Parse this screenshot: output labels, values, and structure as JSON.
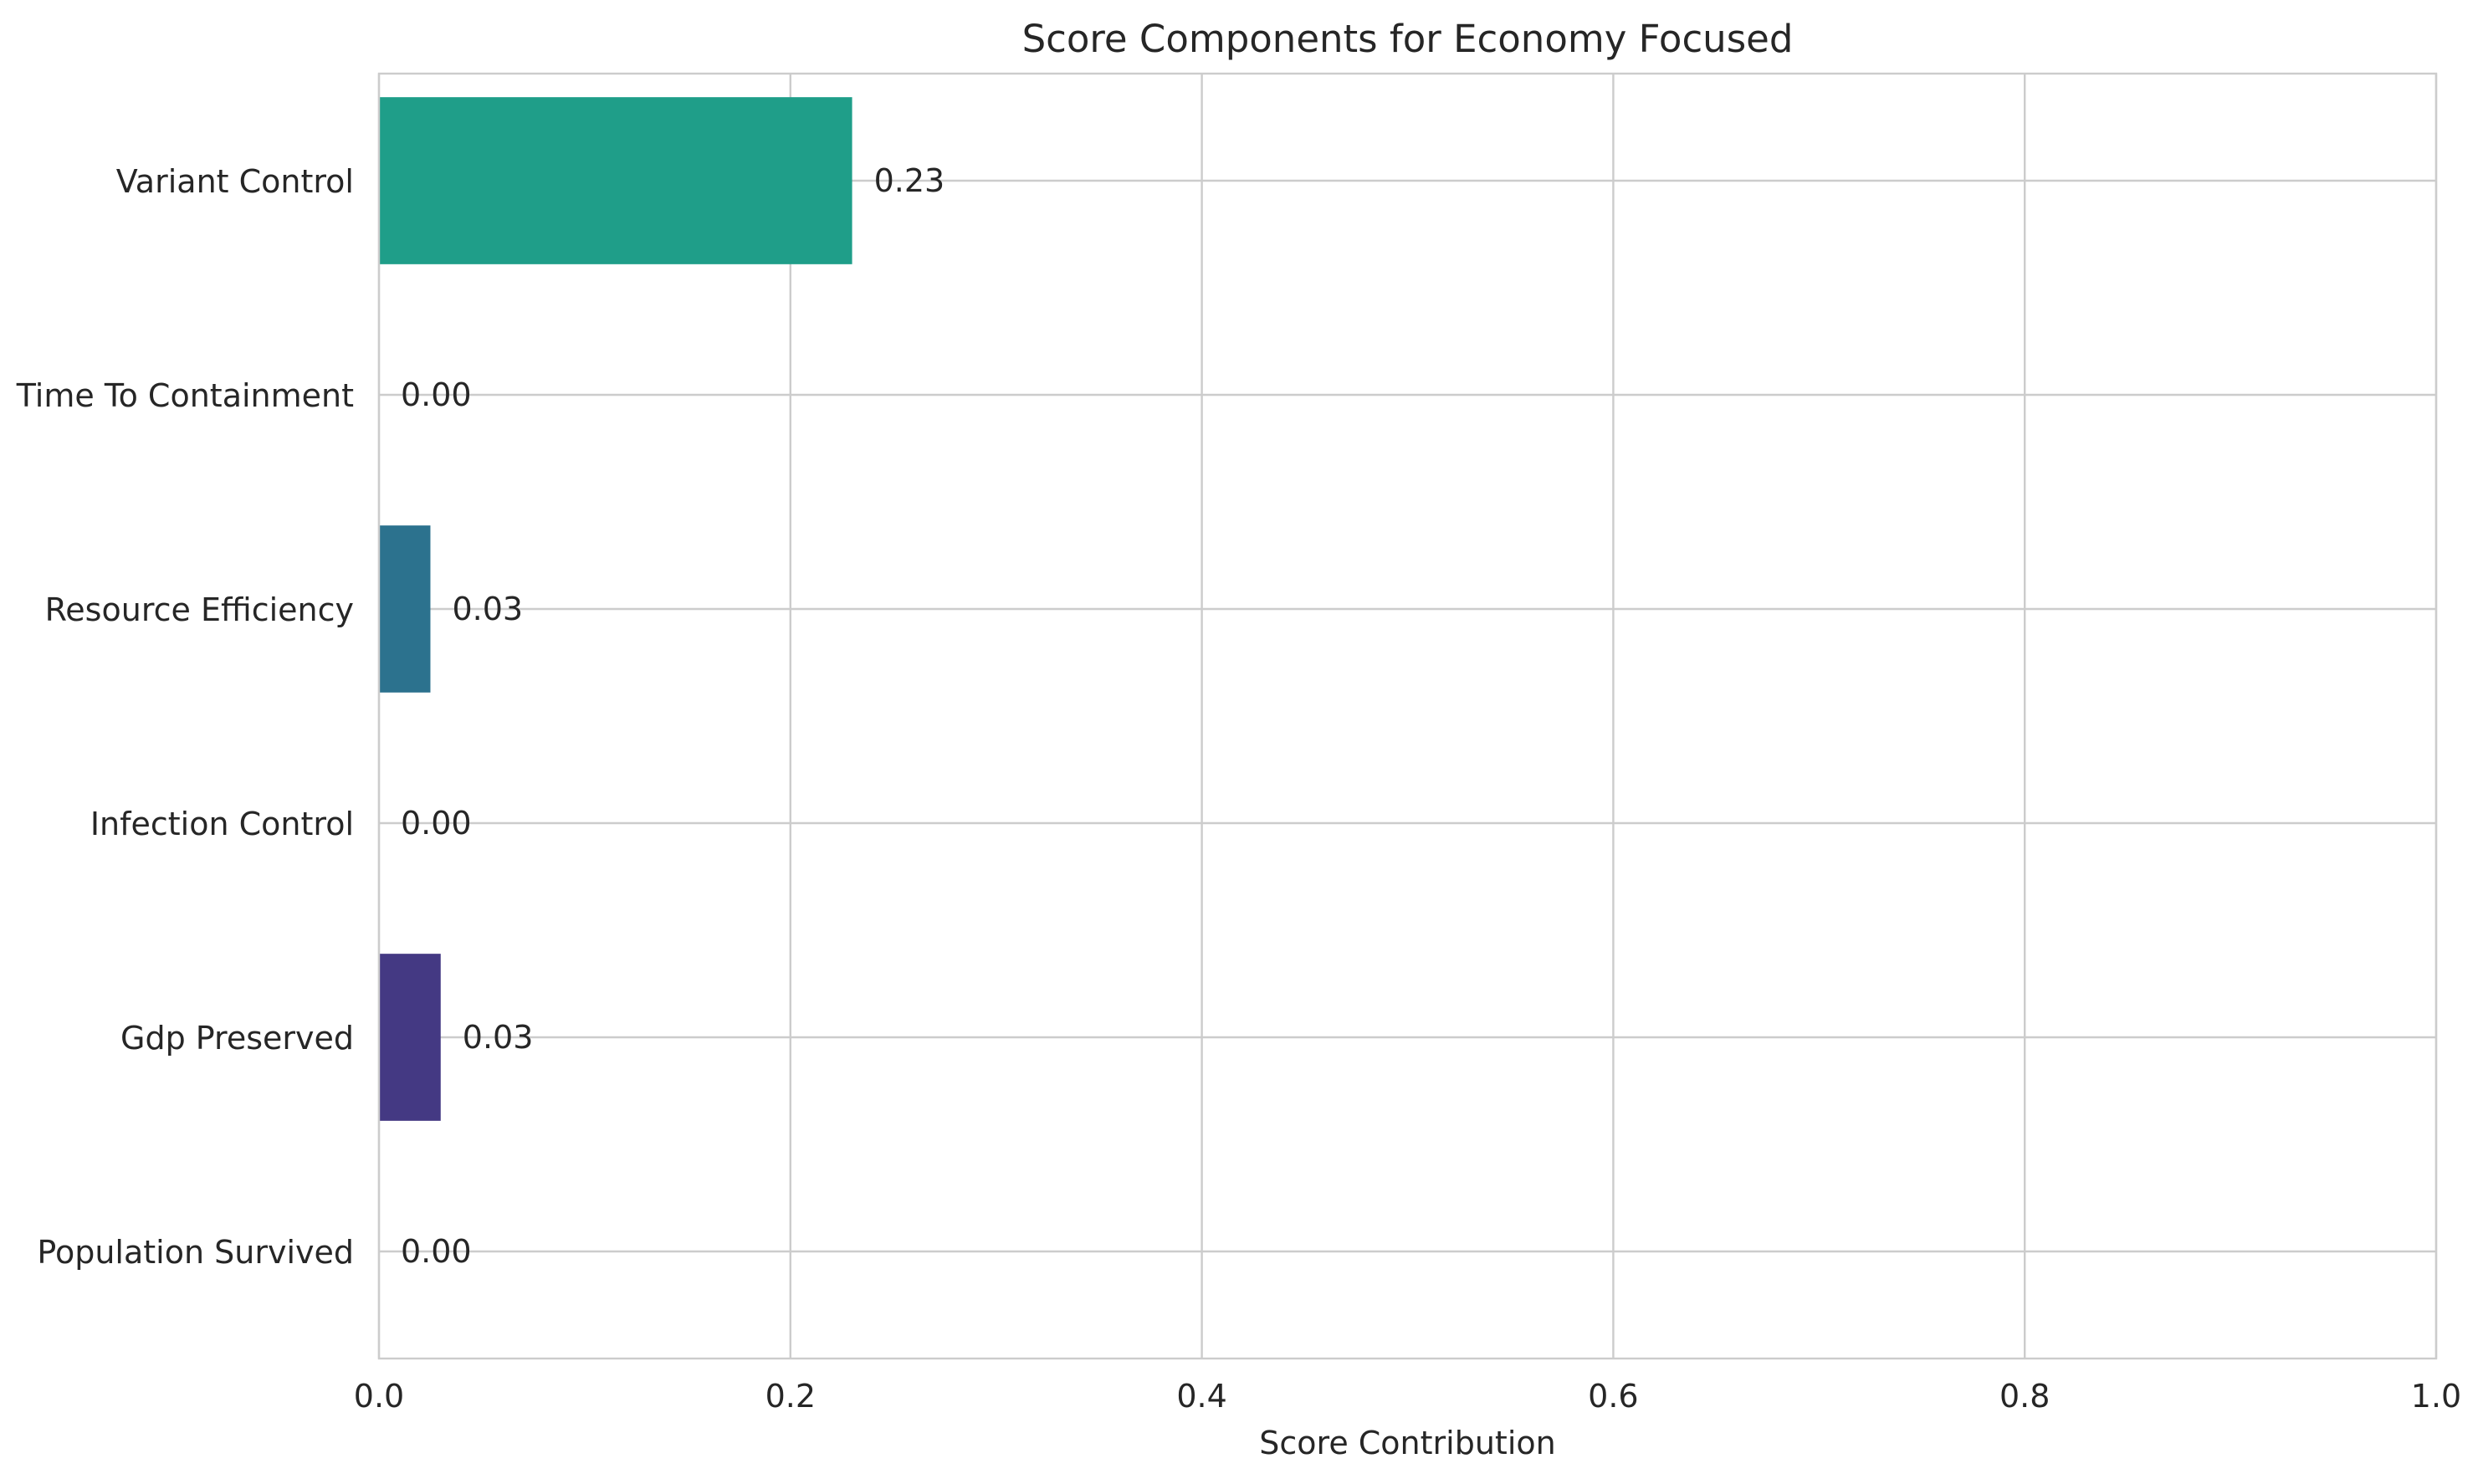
{
  "chart_data": {
    "type": "bar",
    "orientation": "horizontal",
    "title": "Score Components for Economy Focused",
    "xlabel": "Score Contribution",
    "ylabel": "",
    "xlim": [
      0,
      1
    ],
    "x_ticks": [
      "0.0",
      "0.2",
      "0.4",
      "0.6",
      "0.8",
      "1.0"
    ],
    "x_tick_values": [
      0,
      0.2,
      0.4,
      0.6,
      0.8,
      1.0
    ],
    "grid": true,
    "categories": [
      "Population Survived",
      "Gdp Preserved",
      "Infection Control",
      "Resource Efficiency",
      "Time To Containment",
      "Variant Control"
    ],
    "values": [
      0.0,
      0.03,
      0.0,
      0.025,
      0.0,
      0.23
    ],
    "value_labels": [
      "0.00",
      "0.03",
      "0.00",
      "0.03",
      "0.00",
      "0.23"
    ],
    "colors": [
      "#440154",
      "#443983",
      "#31688e",
      "#2c728e",
      "#21918c",
      "#1f9e89"
    ]
  }
}
